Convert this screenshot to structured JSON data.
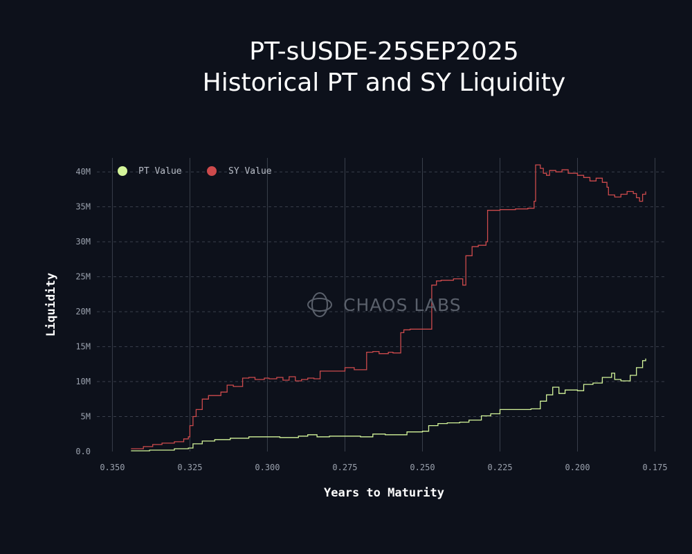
{
  "chart_data": {
    "type": "line",
    "title_lines": [
      "PT-sUSDE-25SEP2025",
      "Historical PT and SY Liquidity"
    ],
    "xlabel": "Years to Maturity",
    "ylabel": "Liquidity",
    "x_reversed": true,
    "xlim": [
      0.355,
      0.172
    ],
    "ylim": [
      0,
      42000000
    ],
    "x_ticks": [
      0.35,
      0.325,
      0.3,
      0.275,
      0.25,
      0.225,
      0.2,
      0.175
    ],
    "x_tick_labels": [
      "0.350",
      "0.325",
      "0.300",
      "0.275",
      "0.250",
      "0.225",
      "0.200",
      "0.175"
    ],
    "y_ticks": [
      0,
      5000000,
      10000000,
      15000000,
      20000000,
      25000000,
      30000000,
      35000000,
      40000000
    ],
    "y_tick_labels": [
      "0.0",
      "5M",
      "10M",
      "15M",
      "20M",
      "25M",
      "30M",
      "35M",
      "40M"
    ],
    "grid": {
      "vertical": "solid",
      "horizontal": "dashed"
    },
    "legend_position": "top-left",
    "watermark": "CHAOS LABS",
    "series": [
      {
        "name": "PT Value",
        "color": "#d4f59a",
        "x": [
          0.344,
          0.338,
          0.33,
          0.3255,
          0.324,
          0.321,
          0.317,
          0.312,
          0.306,
          0.3,
          0.296,
          0.29,
          0.287,
          0.284,
          0.28,
          0.275,
          0.27,
          0.266,
          0.262,
          0.258,
          0.255,
          0.25,
          0.248,
          0.245,
          0.242,
          0.238,
          0.235,
          0.231,
          0.228,
          0.225,
          0.22,
          0.215,
          0.212,
          0.21,
          0.208,
          0.206,
          0.204,
          0.2,
          0.198,
          0.195,
          0.192,
          0.189,
          0.188,
          0.186,
          0.183,
          0.181,
          0.179,
          0.178
        ],
        "y": [
          100000,
          200000,
          400000,
          500000,
          1100000,
          1500000,
          1700000,
          1900000,
          2100000,
          2100000,
          2000000,
          2200000,
          2400000,
          2100000,
          2200000,
          2200000,
          2100000,
          2500000,
          2400000,
          2400000,
          2800000,
          2900000,
          3700000,
          4000000,
          4100000,
          4200000,
          4500000,
          5100000,
          5400000,
          6000000,
          6000000,
          6100000,
          7200000,
          8100000,
          9200000,
          8300000,
          8800000,
          8700000,
          9600000,
          9800000,
          10600000,
          11200000,
          10300000,
          10100000,
          10900000,
          12000000,
          13000000,
          13300000
        ]
      },
      {
        "name": "SY Value",
        "color": "#cd4a4c",
        "x": [
          0.344,
          0.34,
          0.337,
          0.334,
          0.33,
          0.327,
          0.3255,
          0.325,
          0.324,
          0.323,
          0.321,
          0.319,
          0.317,
          0.315,
          0.313,
          0.311,
          0.308,
          0.306,
          0.304,
          0.301,
          0.2995,
          0.297,
          0.295,
          0.293,
          0.291,
          0.289,
          0.287,
          0.285,
          0.283,
          0.28,
          0.277,
          0.275,
          0.272,
          0.268,
          0.266,
          0.264,
          0.261,
          0.2595,
          0.257,
          0.256,
          0.254,
          0.25,
          0.247,
          0.2455,
          0.244,
          0.24,
          0.237,
          0.236,
          0.234,
          0.232,
          0.2295,
          0.229,
          0.225,
          0.22,
          0.216,
          0.214,
          0.2135,
          0.212,
          0.211,
          0.21,
          0.209,
          0.207,
          0.205,
          0.203,
          0.2,
          0.198,
          0.196,
          0.194,
          0.192,
          0.1905,
          0.19,
          0.188,
          0.186,
          0.184,
          0.182,
          0.181,
          0.18,
          0.179,
          0.178
        ],
        "y": [
          400000,
          700000,
          1000000,
          1200000,
          1400000,
          1800000,
          2100000,
          3700000,
          5000000,
          6000000,
          7500000,
          8000000,
          8000000,
          8500000,
          9500000,
          9300000,
          10500000,
          10600000,
          10300000,
          10500000,
          10400000,
          10600000,
          10200000,
          10700000,
          10100000,
          10300000,
          10500000,
          10400000,
          11500000,
          11500000,
          11500000,
          12000000,
          11700000,
          14200000,
          14300000,
          14000000,
          14200000,
          14100000,
          17000000,
          17400000,
          17500000,
          17500000,
          23800000,
          24400000,
          24500000,
          24700000,
          23800000,
          28000000,
          29300000,
          29500000,
          30000000,
          34500000,
          34600000,
          34700000,
          34800000,
          35800000,
          41000000,
          40500000,
          39800000,
          39500000,
          40200000,
          40000000,
          40300000,
          39800000,
          39500000,
          39200000,
          38700000,
          39100000,
          38500000,
          37800000,
          36700000,
          36400000,
          36800000,
          37200000,
          36900000,
          36300000,
          35800000,
          36800000,
          37200000
        ]
      }
    ]
  }
}
